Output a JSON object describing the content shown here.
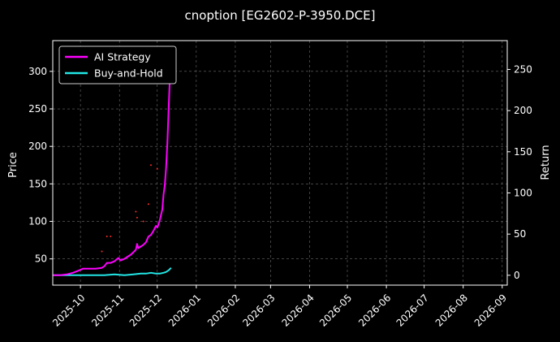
{
  "chart_data": {
    "type": "line",
    "title": "cnoption [EG2602-P-3950.DCE]",
    "ylabel_left": "Price",
    "ylabel_right": "Return",
    "xlim": [
      "2025-09-09",
      "2026-09-05"
    ],
    "ylim_left": [
      15,
      341
    ],
    "ylim_right": [
      -12,
      285
    ],
    "x_ticks": [
      "2025-10-01",
      "2025-11-01",
      "2025-12-01",
      "2026-01-01",
      "2026-02-01",
      "2026-03-01",
      "2026-04-01",
      "2026-05-01",
      "2026-06-01",
      "2026-07-01",
      "2026-08-01",
      "2026-09-01"
    ],
    "x_tick_labels": [
      "2025-10",
      "2025-11",
      "2025-12",
      "2026-01",
      "2026-02",
      "2026-03",
      "2026-04",
      "2026-05",
      "2026-06",
      "2026-07",
      "2026-08",
      "2026-09"
    ],
    "y_ticks_left": [
      50,
      100,
      150,
      200,
      250,
      300
    ],
    "y_ticks_right": [
      0,
      50,
      100,
      150,
      200,
      250
    ],
    "grid": true,
    "legend_position": "top-left",
    "series": [
      {
        "name": "AI Strategy",
        "axis": "right",
        "color": "#ff00ff",
        "points": [
          [
            "2025-09-09",
            0
          ],
          [
            "2025-09-15",
            0
          ],
          [
            "2025-09-20",
            1
          ],
          [
            "2025-09-25",
            3
          ],
          [
            "2025-09-30",
            6
          ],
          [
            "2025-10-03",
            8
          ],
          [
            "2025-10-08",
            8
          ],
          [
            "2025-10-13",
            8
          ],
          [
            "2025-10-18",
            9
          ],
          [
            "2025-10-20",
            11
          ],
          [
            "2025-10-22",
            15
          ],
          [
            "2025-10-25",
            15
          ],
          [
            "2025-10-28",
            17
          ],
          [
            "2025-10-31",
            21
          ],
          [
            "2025-11-02",
            18
          ],
          [
            "2025-11-05",
            20
          ],
          [
            "2025-11-07",
            22
          ],
          [
            "2025-11-10",
            25
          ],
          [
            "2025-11-12",
            28
          ],
          [
            "2025-11-14",
            31
          ],
          [
            "2025-11-15",
            38
          ],
          [
            "2025-11-16",
            33
          ],
          [
            "2025-11-18",
            35
          ],
          [
            "2025-11-20",
            37
          ],
          [
            "2025-11-22",
            40
          ],
          [
            "2025-11-24",
            47
          ],
          [
            "2025-11-26",
            49
          ],
          [
            "2025-11-28",
            54
          ],
          [
            "2025-11-30",
            60
          ],
          [
            "2025-12-01",
            58
          ],
          [
            "2025-12-02",
            62
          ],
          [
            "2025-12-03",
            67
          ],
          [
            "2025-12-05",
            80
          ],
          [
            "2025-12-06",
            98
          ],
          [
            "2025-12-07",
            110
          ],
          [
            "2025-12-08",
            130
          ],
          [
            "2025-12-09",
            160
          ],
          [
            "2025-12-10",
            200
          ],
          [
            "2025-12-11",
            240
          ],
          [
            "2025-12-12",
            275
          ]
        ]
      },
      {
        "name": "Buy-and-Hold",
        "axis": "right",
        "color": "#22e6e6",
        "points": [
          [
            "2025-09-09",
            0
          ],
          [
            "2025-09-20",
            0
          ],
          [
            "2025-10-01",
            0
          ],
          [
            "2025-10-10",
            0
          ],
          [
            "2025-10-20",
            0
          ],
          [
            "2025-10-28",
            1
          ],
          [
            "2025-11-05",
            0
          ],
          [
            "2025-11-12",
            1
          ],
          [
            "2025-11-18",
            2
          ],
          [
            "2025-11-22",
            2
          ],
          [
            "2025-11-26",
            3
          ],
          [
            "2025-11-30",
            2
          ],
          [
            "2025-12-03",
            2
          ],
          [
            "2025-12-06",
            3
          ],
          [
            "2025-12-08",
            4
          ],
          [
            "2025-12-10",
            6
          ],
          [
            "2025-12-12",
            9
          ]
        ]
      }
    ],
    "price_scatter": {
      "axis": "left",
      "color": "#ff2a2a",
      "points": [
        [
          "2025-10-18",
          60
        ],
        [
          "2025-10-22",
          80
        ],
        [
          "2025-10-25",
          80
        ],
        [
          "2025-11-14",
          113
        ],
        [
          "2025-11-15",
          105
        ],
        [
          "2025-11-20",
          100
        ],
        [
          "2025-11-24",
          123
        ],
        [
          "2025-11-26",
          175
        ],
        [
          "2025-12-01",
          170
        ]
      ]
    }
  }
}
